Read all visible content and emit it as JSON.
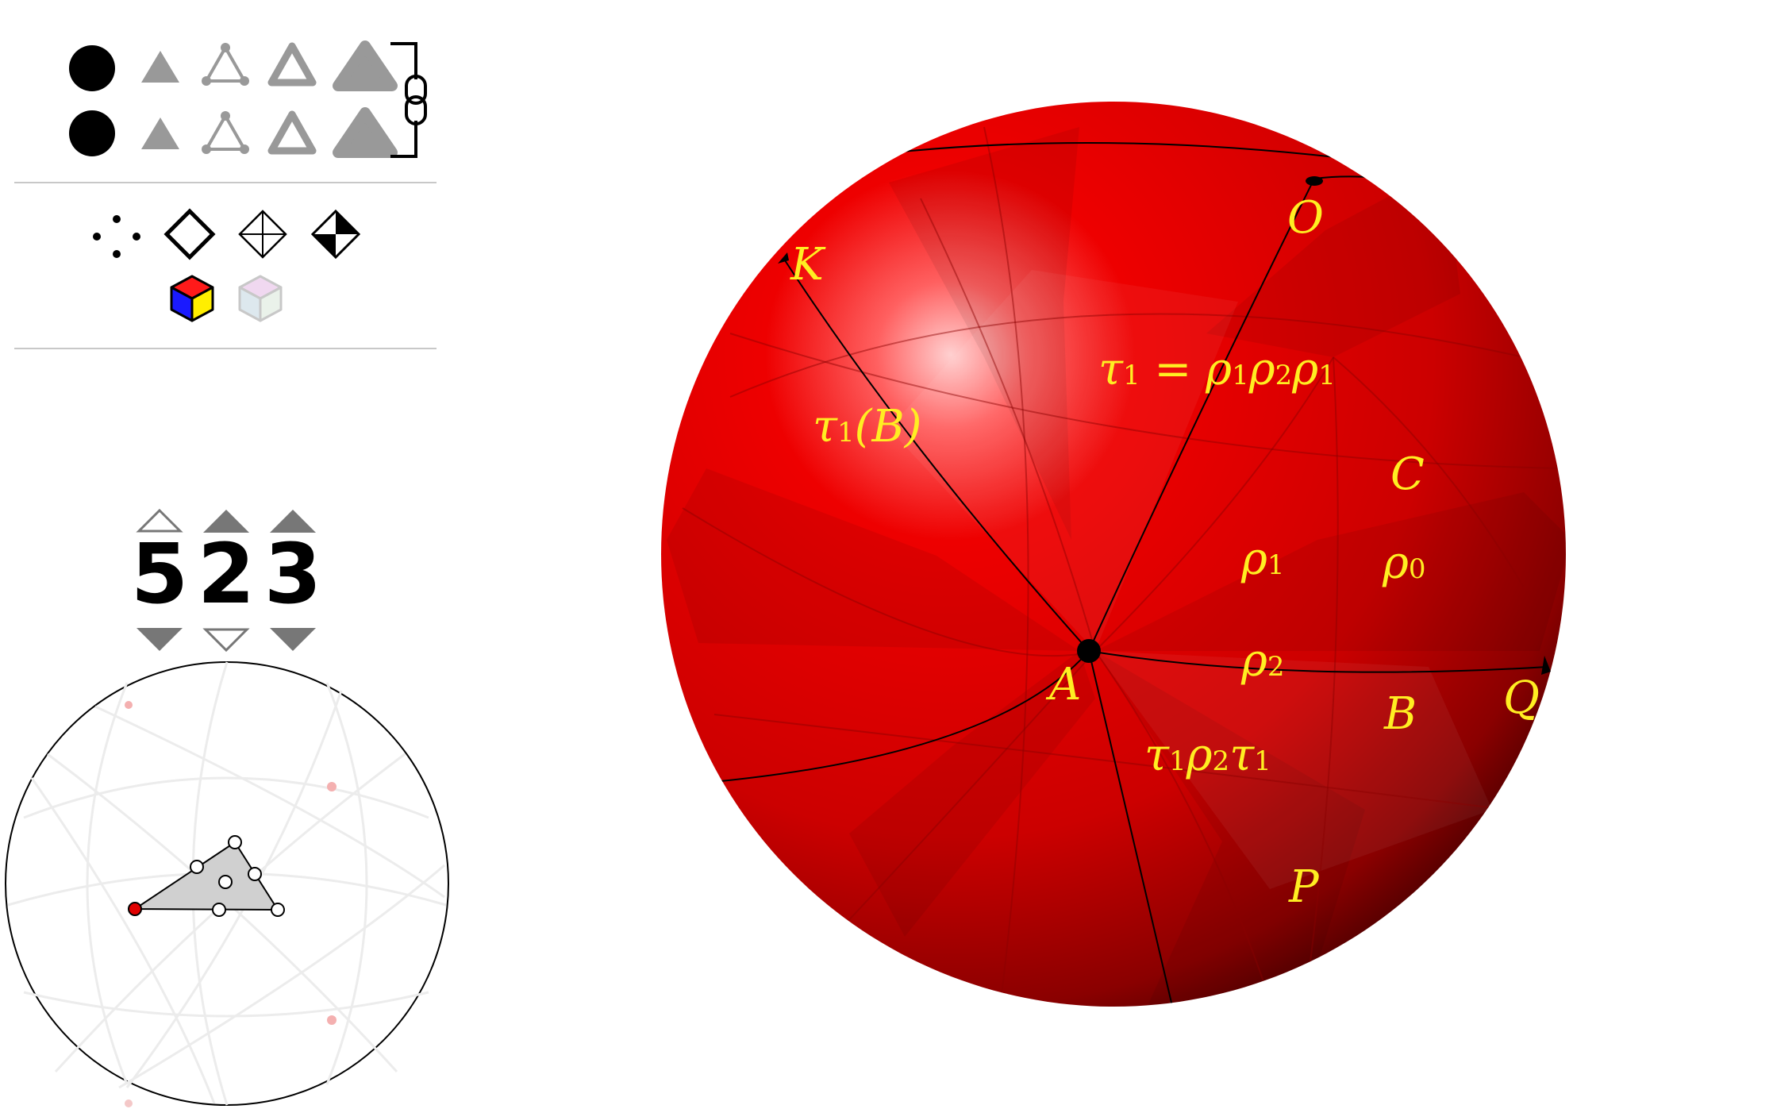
{
  "toolbar": {
    "rows": [
      {
        "tools": [
          "vertex-dot-icon",
          "small-triangle-icon",
          "triangle-nodes-icon",
          "outline-triangle-icon",
          "rounded-triangle-icon"
        ]
      },
      {
        "tools": [
          "vertex-dot-icon",
          "small-triangle-icon",
          "triangle-nodes-icon",
          "outline-triangle-icon",
          "rounded-triangle-icon"
        ]
      }
    ],
    "link_icon": "chain-link-icon"
  },
  "view_tools": [
    "points-icon",
    "diamond-icon",
    "diamond-cross-icon",
    "diamond-filled-quarters-icon",
    "color-cube-icon",
    "faded-cube-icon"
  ],
  "group_selector": {
    "digits": [
      "5",
      "2",
      "3"
    ],
    "up_arrows": [
      "outline",
      "filled",
      "filled"
    ],
    "down_arrows": [
      "filled",
      "outline",
      "filled"
    ]
  },
  "sphere_labels": {
    "O": "O",
    "K": "K",
    "tau_eq_main": "τ",
    "tau_eq_sub1": "1",
    "tau_eq_rest": " = ρ",
    "tau_eq_sub2": "1",
    "tau_eq_rho2": "ρ",
    "tau_eq_sub3": "2",
    "tau_eq_rho3": "ρ",
    "tau_eq_sub4": "1",
    "tauB_main": "τ",
    "tauB_sub": "1",
    "tauB_rest": "(B)",
    "C": "C",
    "rho1_main": "ρ",
    "rho1_sub": "1",
    "rho0_main": "ρ",
    "rho0_sub": "0",
    "rho2_main": "ρ",
    "rho2_sub": "2",
    "A": "A",
    "B": "B",
    "Q": "Q",
    "trt_t1": "τ",
    "trt_s1": "1",
    "trt_r": "ρ",
    "trt_s2": "2",
    "trt_t2": "τ",
    "trt_s3": "1",
    "P": "P"
  },
  "colors": {
    "sphere": "#e00000",
    "label": "#ffee22",
    "toolbar_gray": "#999999"
  }
}
